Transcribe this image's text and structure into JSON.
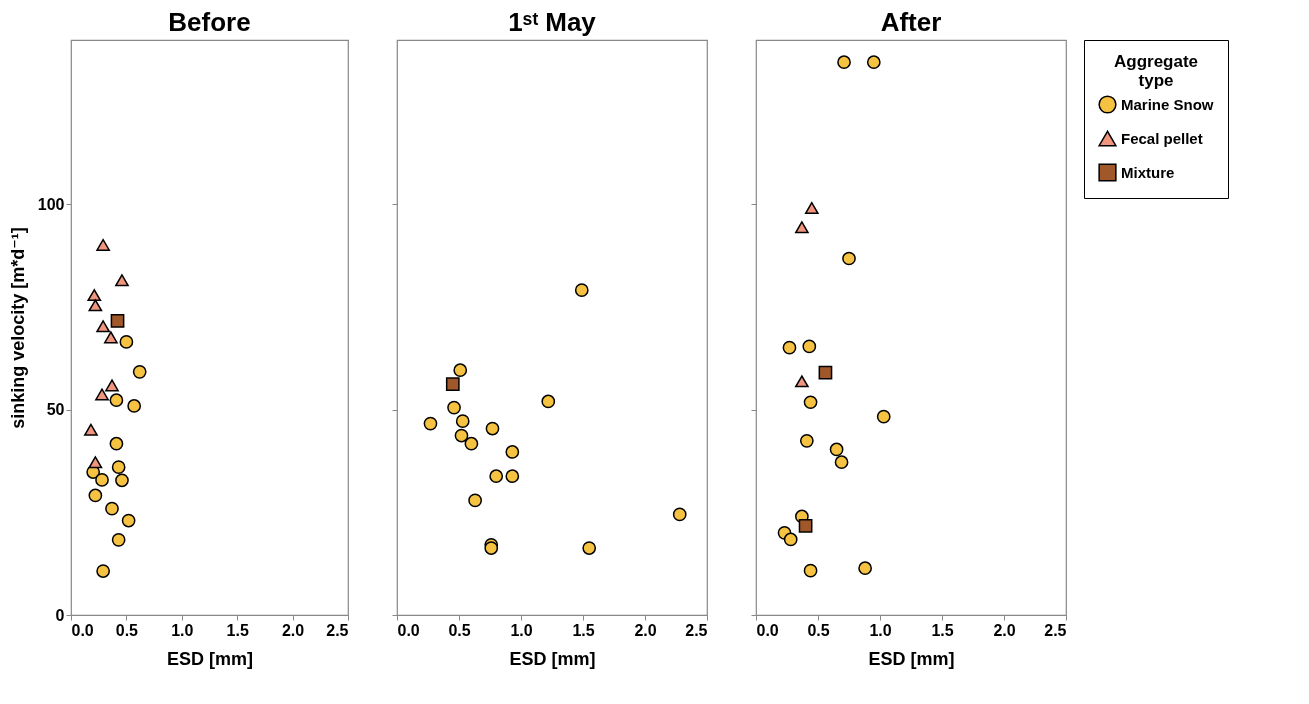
{
  "chart_data": [
    {
      "type": "scatter",
      "title": "Before",
      "xlabel": "ESD [mm]",
      "ylabel": "sinking velocity [m*d⁻¹]",
      "xlim": [
        0,
        2.5
      ],
      "ylim": [
        0,
        140
      ],
      "xticks": [
        {
          "value": 0,
          "label": "0.0"
        },
        {
          "value": 0.5,
          "label": "0.5"
        },
        {
          "value": 1,
          "label": "1.0"
        },
        {
          "value": 1.5,
          "label": "1.5"
        },
        {
          "value": 2,
          "label": "2.0"
        },
        {
          "value": 2.5,
          "label": "2.5"
        }
      ],
      "yticks": [
        0,
        50,
        100
      ],
      "grid": false,
      "legend": false,
      "series": [
        {
          "color": "#f5c242",
          "marker": "circle",
          "x": [
            0.5,
            0.62,
            0.41,
            0.57,
            0.41,
            0.43,
            0.2,
            0.28,
            0.46,
            0.22,
            0.37,
            0.52,
            0.43,
            0.29
          ],
          "values": [
            66.5,
            59.2,
            52.3,
            50.9,
            41.7,
            36.0,
            34.8,
            32.9,
            32.8,
            29.1,
            25.9,
            23.0,
            18.3,
            10.7
          ]
        },
        {
          "color": "#f0957e",
          "marker": "triangle",
          "x": [
            0.29,
            0.46,
            0.21,
            0.22,
            0.29,
            0.36,
            0.37,
            0.28,
            0.18,
            0.22
          ],
          "values": [
            90.1,
            81.5,
            77.9,
            75.4,
            70.3,
            67.6,
            55.9,
            53.7,
            45.1,
            37.2
          ]
        },
        {
          "color": "#a0582a",
          "marker": "square",
          "x": [
            0.42
          ],
          "values": [
            71.6
          ]
        }
      ]
    },
    {
      "type": "scatter",
      "title": "1ˢᵗ May",
      "xlabel": "ESD [mm]",
      "xlim": [
        0,
        2.5
      ],
      "ylim": [
        0,
        140
      ],
      "xticks": [
        {
          "value": 0,
          "label": "0.0"
        },
        {
          "value": 0.5,
          "label": "0.5"
        },
        {
          "value": 1,
          "label": "1.0"
        },
        {
          "value": 1.5,
          "label": "1.5"
        },
        {
          "value": 2,
          "label": "2.0"
        },
        {
          "value": 2.5,
          "label": "2.5"
        }
      ],
      "yticks": [
        0,
        50,
        100
      ],
      "tick_labels": "x",
      "grid": false,
      "legend": false,
      "series": [
        {
          "color": "#f5c242",
          "marker": "circle",
          "x": [
            1.49,
            0.51,
            1.22,
            0.46,
            0.27,
            0.53,
            0.77,
            0.52,
            0.6,
            0.93,
            0.8,
            0.93,
            0.63,
            2.28,
            0.76,
            0.76,
            1.55
          ],
          "values": [
            79.1,
            59.6,
            52.0,
            50.5,
            46.6,
            47.2,
            45.4,
            43.7,
            41.7,
            39.7,
            33.8,
            33.8,
            27.9,
            24.5,
            17.1,
            16.3,
            16.3
          ]
        },
        {
          "color": "#a0582a",
          "marker": "square",
          "x": [
            0.45
          ],
          "values": [
            56.2
          ]
        }
      ]
    },
    {
      "type": "scatter",
      "title": "After",
      "xlabel": "ESD [mm]",
      "xlim": [
        0,
        2.5
      ],
      "ylim": [
        0,
        140
      ],
      "xticks": [
        {
          "value": 0,
          "label": "0.0"
        },
        {
          "value": 0.5,
          "label": "0.5"
        },
        {
          "value": 1,
          "label": "1.0"
        },
        {
          "value": 1.5,
          "label": "1.5"
        },
        {
          "value": 2,
          "label": "2.0"
        },
        {
          "value": 2.5,
          "label": "2.5"
        }
      ],
      "yticks": [
        0,
        50,
        100
      ],
      "tick_labels": "x",
      "grid": false,
      "legend": "right",
      "legend_title": "Aggregate type",
      "series": [
        {
          "name": "Marine Snow",
          "color": "#f5c242",
          "marker": "circle",
          "x": [
            0.71,
            0.95,
            0.75,
            0.27,
            0.43,
            0.44,
            1.03,
            0.41,
            0.65,
            0.69,
            0.37,
            0.23,
            0.28,
            0.44,
            0.88
          ],
          "values": [
            134.6,
            134.6,
            86.8,
            65.1,
            65.4,
            51.8,
            48.3,
            42.4,
            40.3,
            37.2,
            24.0,
            20.0,
            18.4,
            10.8,
            11.4
          ]
        },
        {
          "name": "Fecal pellet",
          "color": "#f0957e",
          "marker": "triangle",
          "x": [
            0.45,
            0.37,
            0.37
          ],
          "values": [
            99.1,
            94.4,
            56.9
          ]
        },
        {
          "name": "Mixture",
          "color": "#a0582a",
          "marker": "square",
          "x": [
            0.56,
            0.4
          ],
          "values": [
            59.0,
            21.7
          ]
        }
      ]
    }
  ]
}
